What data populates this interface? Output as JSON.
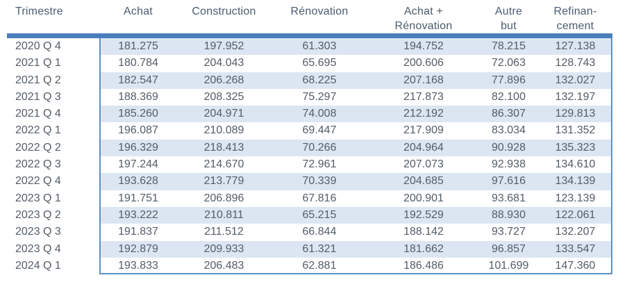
{
  "colors": {
    "accent_bar": "#4a7ebb",
    "box_border": "#5e8fc7",
    "alt_row_fill": "#dce6f2",
    "header_text": "#4a5b70",
    "cell_text": "#535c66"
  },
  "table": {
    "columns": [
      {
        "line1": "Trimestre",
        "line2": ""
      },
      {
        "line1": "Achat",
        "line2": ""
      },
      {
        "line1": "Construction",
        "line2": ""
      },
      {
        "line1": "Rénovation",
        "line2": ""
      },
      {
        "line1": "Achat +",
        "line2": "Rénovation"
      },
      {
        "line1": "Autre",
        "line2": "but"
      },
      {
        "line1": "Refinan-",
        "line2": "cement"
      }
    ],
    "rows": [
      {
        "label": "2020 Q 4",
        "values": [
          "181.275",
          "197.952",
          "61.303",
          "194.752",
          "78.215",
          "127.138"
        ]
      },
      {
        "label": "2021 Q 1",
        "values": [
          "180.784",
          "204.043",
          "65.695",
          "200.606",
          "72.063",
          "128.743"
        ]
      },
      {
        "label": "2021 Q 2",
        "values": [
          "182.547",
          "206.268",
          "68.225",
          "207.168",
          "77.896",
          "132.027"
        ]
      },
      {
        "label": "2021 Q 3",
        "values": [
          "188.369",
          "208.325",
          "75.297",
          "217.873",
          "82.100",
          "132.197"
        ]
      },
      {
        "label": "2021 Q 4",
        "values": [
          "185.260",
          "204.971",
          "74.008",
          "212.192",
          "86.307",
          "129.813"
        ]
      },
      {
        "label": "2022 Q 1",
        "values": [
          "196.087",
          "210.089",
          "69.447",
          "217.909",
          "83.034",
          "131.352"
        ]
      },
      {
        "label": "2022 Q 2",
        "values": [
          "196.329",
          "218.413",
          "70.266",
          "204.964",
          "90.928",
          "135.323"
        ]
      },
      {
        "label": "2022 Q 3",
        "values": [
          "197.244",
          "214.670",
          "72.961",
          "207.073",
          "92.938",
          "134.610"
        ]
      },
      {
        "label": "2022 Q 4",
        "values": [
          "193.628",
          "213.779",
          "70.339",
          "204.685",
          "97.616",
          "134.139"
        ]
      },
      {
        "label": "2023 Q 1",
        "values": [
          "191.751",
          "206.896",
          "67.816",
          "200.901",
          "93.681",
          "123.139"
        ]
      },
      {
        "label": "2023 Q 2",
        "values": [
          "193.222",
          "210.811",
          "65.215",
          "192.529",
          "88.930",
          "122.061"
        ]
      },
      {
        "label": "2023 Q 3",
        "values": [
          "191.837",
          "211.512",
          "66.844",
          "188.142",
          "93.727",
          "132.207"
        ]
      },
      {
        "label": "2023 Q 4",
        "values": [
          "192.879",
          "209.933",
          "61.321",
          "181.662",
          "96.857",
          "133.547"
        ]
      },
      {
        "label": "2024 Q 1",
        "values": [
          "193.833",
          "206.483",
          "62.881",
          "186.486",
          "101.699",
          "147.360"
        ]
      }
    ]
  }
}
